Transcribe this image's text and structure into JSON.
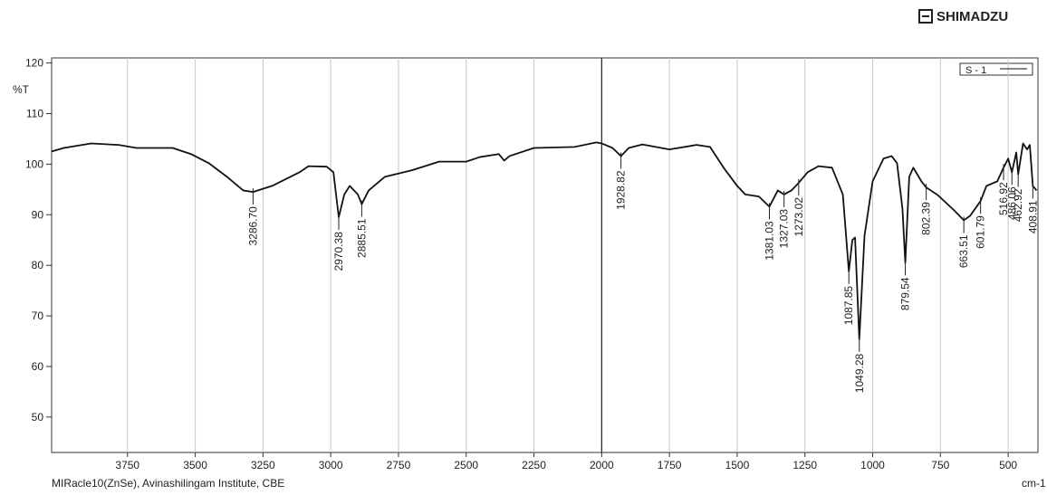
{
  "brand": "SHIMADZU",
  "chart_data": {
    "type": "line",
    "ylabel": "%T",
    "xlabel": "cm-1",
    "note": "MIRacle10(ZnSe), Avinashilingam Institute, CBE",
    "xlim": [
      4030,
      390
    ],
    "ylim": [
      43,
      121
    ],
    "xticks": [
      3750,
      3500,
      3250,
      3000,
      2750,
      2500,
      2250,
      2000,
      1750,
      1500,
      1250,
      1000,
      750,
      500
    ],
    "yticks": [
      50,
      60,
      70,
      80,
      90,
      100,
      110,
      120
    ],
    "grid": true,
    "vline": 2000,
    "legend": "top-right",
    "x": [
      4030,
      3985,
      3884,
      3783,
      3717,
      3583,
      3516,
      3450,
      3383,
      3323,
      3286.7,
      3216,
      3115,
      3082,
      3015,
      2990,
      2970.38,
      2950,
      2930,
      2900,
      2885.51,
      2860,
      2800,
      2700,
      2600,
      2500,
      2450,
      2380,
      2360,
      2340,
      2250,
      2100,
      2020,
      2000,
      1960,
      1928.82,
      1900,
      1850,
      1750,
      1650,
      1600,
      1550,
      1500,
      1470,
      1420,
      1381.03,
      1350,
      1327.03,
      1300,
      1273.02,
      1240,
      1200,
      1150,
      1110,
      1087.85,
      1075,
      1065,
      1049.28,
      1030,
      1000,
      960,
      930,
      910,
      890,
      879.54,
      865,
      850,
      820,
      802.39,
      760,
      700,
      663.51,
      640,
      601.79,
      580,
      540,
      516.92,
      500,
      486.06,
      470,
      462.92,
      445,
      430,
      420,
      408.91,
      395
    ],
    "series": [
      {
        "name": "S - 1",
        "color": "#111111",
        "values": [
          102.5,
          103.2,
          104.1,
          103.8,
          103.2,
          103.2,
          102,
          100.2,
          97.5,
          94.8,
          94.5,
          95.7,
          98.4,
          99.6,
          99.5,
          98.4,
          89.5,
          94,
          95.7,
          94,
          92.1,
          94.8,
          97.5,
          98.8,
          100.5,
          100.5,
          101.4,
          102,
          100.7,
          101.6,
          103.2,
          103.4,
          104.3,
          104.1,
          103.2,
          101.6,
          103.2,
          103.9,
          102.9,
          103.8,
          103.4,
          99.3,
          95.7,
          94,
          93.6,
          91.6,
          94.8,
          94,
          94.8,
          96.3,
          98.4,
          99.6,
          99.3,
          94,
          78.8,
          85,
          85.5,
          65.4,
          85.9,
          96.6,
          101.1,
          101.6,
          100.2,
          91.2,
          80.5,
          97.5,
          99.3,
          96.6,
          95.4,
          93.9,
          90.9,
          88.9,
          89.8,
          92.7,
          95.7,
          96.6,
          99.3,
          101.1,
          98.4,
          102.3,
          98,
          104.1,
          102.9,
          103.8,
          95.7,
          94.8
        ]
      }
    ],
    "peak_labels": [
      {
        "value": 3286.7,
        "label": "3286.70"
      },
      {
        "value": 2970.38,
        "label": "2970.38"
      },
      {
        "value": 2885.51,
        "label": "2885.51"
      },
      {
        "value": 1928.82,
        "label": "1928.82"
      },
      {
        "value": 1381.03,
        "label": "1381.03"
      },
      {
        "value": 1327.03,
        "label": "1327.03"
      },
      {
        "value": 1273.02,
        "label": "1273.02"
      },
      {
        "value": 1087.85,
        "label": "1087.85"
      },
      {
        "value": 1049.28,
        "label": "1049.28"
      },
      {
        "value": 879.54,
        "label": "879.54"
      },
      {
        "value": 802.39,
        "label": "802.39"
      },
      {
        "value": 663.51,
        "label": "663.51"
      },
      {
        "value": 601.79,
        "label": "601.79"
      },
      {
        "value": 516.92,
        "label": "516.92"
      },
      {
        "value": 486.06,
        "label": "486.06"
      },
      {
        "value": 462.92,
        "label": "462.92"
      },
      {
        "value": 408.91,
        "label": "408.91"
      }
    ]
  }
}
